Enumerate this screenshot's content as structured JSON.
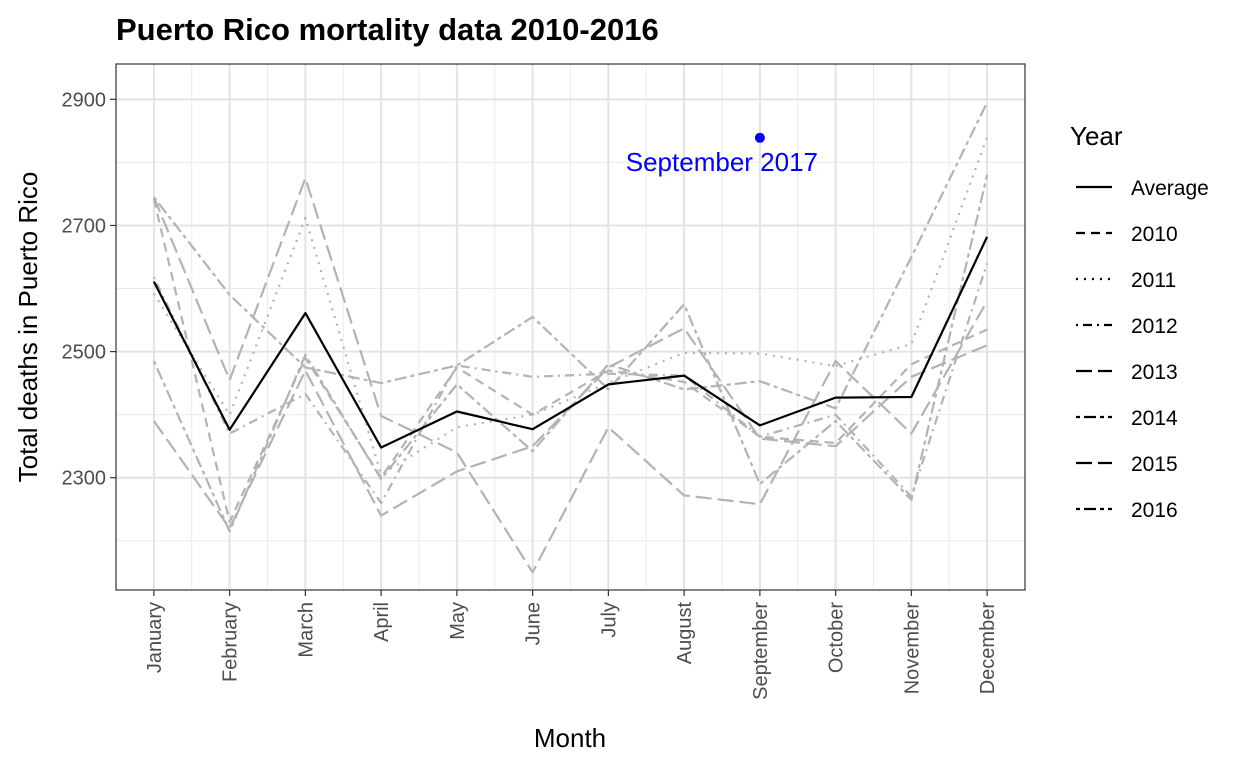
{
  "chart_data": {
    "type": "line",
    "title": "Puerto Rico mortality data 2010-2016",
    "xlabel": "Month",
    "ylabel": "Total deaths in Puerto Rico",
    "categories": [
      "January",
      "February",
      "March",
      "April",
      "May",
      "June",
      "July",
      "August",
      "September",
      "October",
      "November",
      "December"
    ],
    "ylim": [
      2122,
      2956
    ],
    "yticks": [
      2300,
      2500,
      2700,
      2900
    ],
    "grid": true,
    "legend": {
      "title": "Year",
      "placement": "right"
    },
    "series": [
      {
        "name": "Average",
        "color": "#000000",
        "dash": "solid",
        "values": [
          2611,
          2376,
          2561,
          2348,
          2405,
          2377,
          2448,
          2462,
          2383,
          2427,
          2428,
          2682
        ]
      },
      {
        "name": "2010",
        "color": "#b3b3b3",
        "dash": "dashed",
        "values": [
          2742,
          2230,
          2490,
          2300,
          2475,
          2400,
          2470,
          2452,
          2365,
          2355,
          2480,
          2535
        ]
      },
      {
        "name": "2011",
        "color": "#b3b3b3",
        "dash": "dotted",
        "values": [
          2592,
          2400,
          2712,
          2305,
          2380,
          2400,
          2450,
          2498,
          2497,
          2477,
          2512,
          2840
        ]
      },
      {
        "name": "2012",
        "color": "#b3b3b3",
        "dash": "dotdash",
        "values": [
          2618,
          2370,
          2433,
          2260,
          2478,
          2460,
          2465,
          2462,
          2365,
          2400,
          2270,
          2640
        ]
      },
      {
        "name": "2013",
        "color": "#b3b3b3",
        "dash": "longdash",
        "values": [
          2390,
          2220,
          2470,
          2240,
          2310,
          2350,
          2475,
          2537,
          2362,
          2350,
          2460,
          2510
        ]
      },
      {
        "name": "2014",
        "color": "#b3b3b3",
        "dash": "twodash",
        "values": [
          2485,
          2215,
          2495,
          2298,
          2448,
          2342,
          2480,
          2440,
          2453,
          2410,
          2650,
          2895
        ]
      },
      {
        "name": "2015",
        "color": "#b3b3b3",
        "dash": "longdash",
        "values": [
          2745,
          2455,
          2775,
          2398,
          2340,
          2150,
          2380,
          2272,
          2258,
          2485,
          2370,
          2580
        ]
      },
      {
        "name": "2016",
        "color": "#b3b3b3",
        "dash": "twodash",
        "values": [
          2745,
          2590,
          2475,
          2450,
          2478,
          2555,
          2440,
          2575,
          2290,
          2390,
          2265,
          2780
        ]
      }
    ],
    "annotations": [
      {
        "label": "September 2017",
        "x": "September",
        "y": 2839,
        "color": "#0000ff"
      }
    ]
  }
}
